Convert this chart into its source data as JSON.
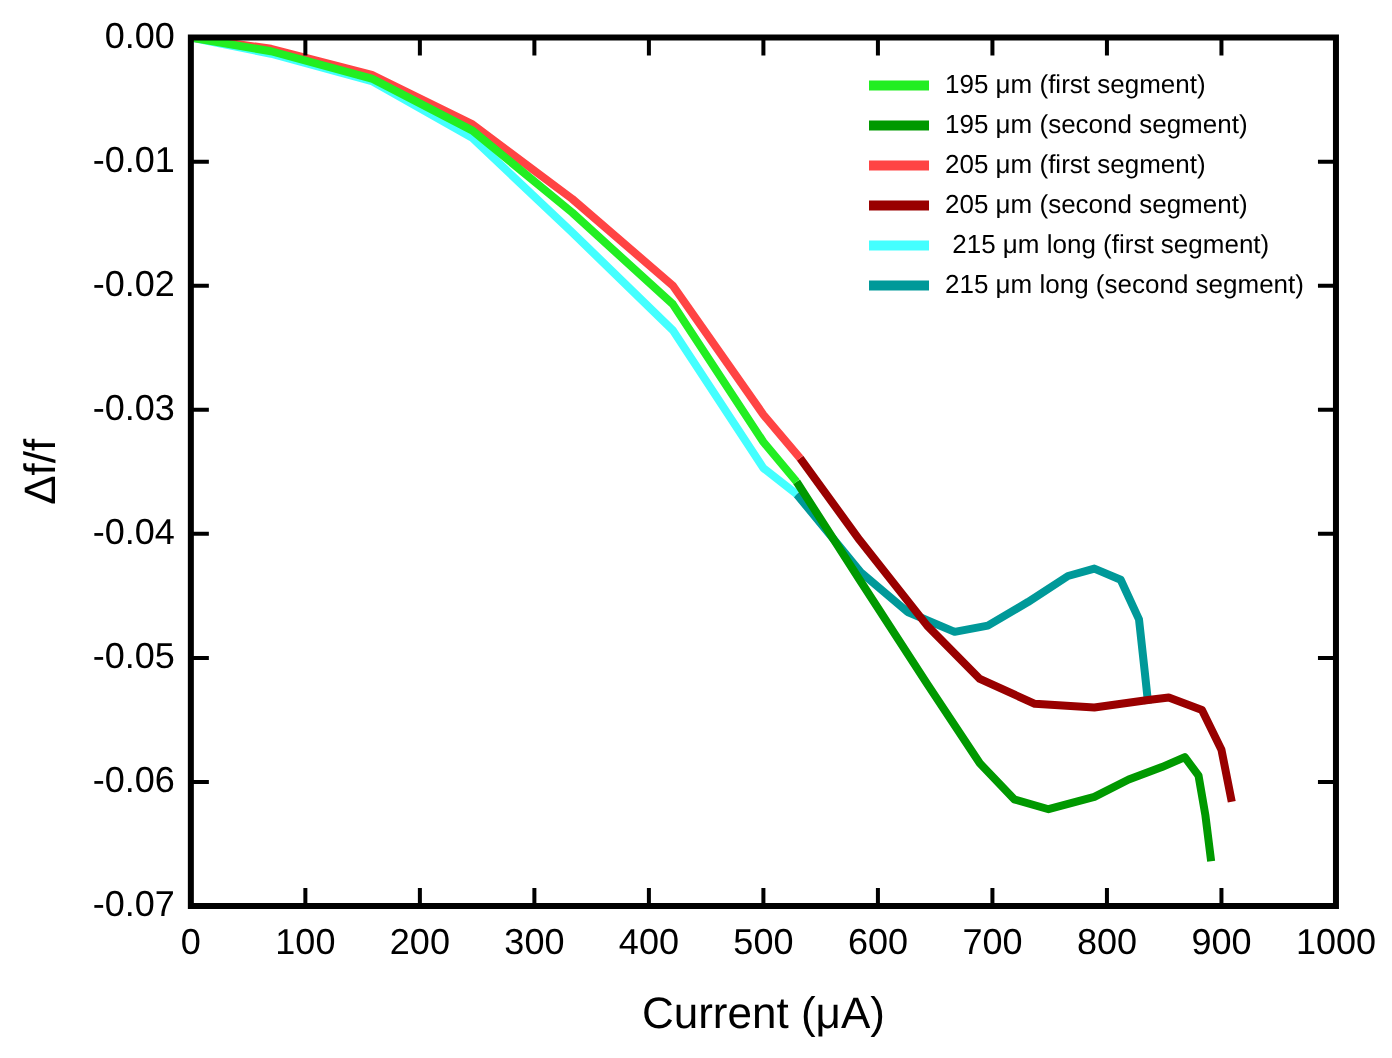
{
  "chart_data": {
    "type": "line",
    "xlabel": "Current (μA)",
    "ylabel": "Δf/f",
    "xlim": [
      0,
      1000
    ],
    "xticks": [
      0,
      100,
      200,
      300,
      400,
      500,
      600,
      700,
      800,
      900,
      1000
    ],
    "ylim": [
      -0.07,
      0
    ],
    "yticks": [
      {
        "value": 0,
        "label": "0.00"
      },
      {
        "value": -0.01,
        "label": "-0.01"
      },
      {
        "value": -0.02,
        "label": "-0.02"
      },
      {
        "value": -0.03,
        "label": "-0.03"
      },
      {
        "value": -0.04,
        "label": "-0.04"
      },
      {
        "value": -0.05,
        "label": "-0.05"
      },
      {
        "value": -0.06,
        "label": "-0.06"
      },
      {
        "value": -0.07,
        "label": "-0.07"
      }
    ],
    "grid": false,
    "legend": "top right",
    "marker": "none",
    "line_style": "solid",
    "series": [
      {
        "name": "195 μm (first segment)",
        "color": "#22ee22",
        "x": [
          0,
          70,
          158,
          246,
          333,
          421,
          500,
          529
        ],
        "values": [
          0,
          -0.0011,
          -0.0033,
          -0.0075,
          -0.0141,
          -0.0215,
          -0.0326,
          -0.0358
        ]
      },
      {
        "name": "195 μm (second segment)",
        "color": "#009900",
        "x": [
          529,
          584,
          643,
          689,
          719,
          749,
          789,
          819,
          848,
          868,
          880,
          886,
          891
        ],
        "values": [
          -0.0358,
          -0.0437,
          -0.0521,
          -0.0585,
          -0.0614,
          -0.0622,
          -0.0612,
          -0.0598,
          -0.0588,
          -0.058,
          -0.0595,
          -0.0627,
          -0.0664
        ]
      },
      {
        "name": "205 μm (first segment)",
        "color": "#ff4444",
        "x": [
          0,
          70,
          158,
          246,
          333,
          421,
          500,
          532
        ],
        "values": [
          0,
          -0.0009,
          -0.003,
          -0.007,
          -0.013,
          -0.02,
          -0.0304,
          -0.0339
        ]
      },
      {
        "name": "205 μm (second segment)",
        "color": "#990000",
        "x": [
          532,
          584,
          643,
          689,
          737,
          789,
          836,
          854,
          883,
          900,
          909
        ],
        "values": [
          -0.0339,
          -0.0405,
          -0.0474,
          -0.0517,
          -0.0537,
          -0.054,
          -0.0534,
          -0.0532,
          -0.0542,
          -0.0574,
          -0.0616
        ]
      },
      {
        "name": " 215 μm long (first segment)",
        "color": "#44ffff",
        "x": [
          0,
          70,
          158,
          246,
          333,
          421,
          500,
          529
        ],
        "values": [
          0,
          -0.0013,
          -0.0035,
          -0.0081,
          -0.0157,
          -0.0236,
          -0.0347,
          -0.0368
        ]
      },
      {
        "name": "215 μm long (second segment)",
        "color": "#009999",
        "x": [
          529,
          585,
          626,
          667,
          696,
          731,
          766,
          789,
          812,
          828,
          833,
          836
        ],
        "values": [
          -0.0368,
          -0.0431,
          -0.0463,
          -0.0479,
          -0.0474,
          -0.0455,
          -0.0434,
          -0.0428,
          -0.0437,
          -0.0469,
          -0.0511,
          -0.0537
        ]
      }
    ]
  }
}
